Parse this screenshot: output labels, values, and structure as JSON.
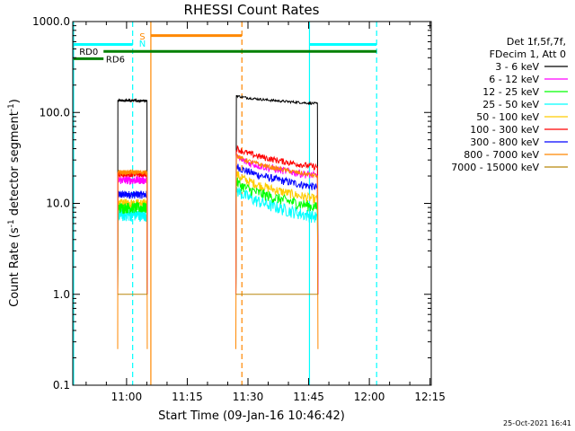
{
  "chart_data": {
    "type": "line",
    "title": "RHESSI Count Rates",
    "xlabel": "Start Time (09-Jan-16 10:46:42)",
    "ylabel_main": "Count Rate (s",
    "ylabel_sup": "-1",
    "ylabel_tail": " detector segment",
    "ylabel_sup2": "-1",
    "ylabel_close": ")",
    "y_scale": "log",
    "ylim": [
      0.1,
      1000
    ],
    "xlim_minutes": [
      46.7,
      135.3
    ],
    "x_ticks": [
      {
        "label": "11:00",
        "minutes": 60
      },
      {
        "label": "11:15",
        "minutes": 75
      },
      {
        "label": "11:30",
        "minutes": 90
      },
      {
        "label": "11:45",
        "minutes": 105
      },
      {
        "label": "12:00",
        "minutes": 120
      },
      {
        "label": "12:15",
        "minutes": 135
      }
    ],
    "y_ticks": [
      {
        "label": "1000.0",
        "value": 1000
      },
      {
        "label": "100.0",
        "value": 100
      },
      {
        "label": "10.0",
        "value": 10
      },
      {
        "label": "1.0",
        "value": 1
      },
      {
        "label": "0.1",
        "value": 0.1
      }
    ],
    "legend": {
      "header": [
        "Det 1f,5f,7f,",
        "FDecim 1, Att 0"
      ],
      "placement": "right"
    },
    "series": [
      {
        "name": "3 - 6 keV",
        "color": "#000000",
        "level1": 135,
        "level2_start": 155,
        "level2_end": 125,
        "noise": 0.03
      },
      {
        "name": "6 - 12 keV",
        "color": "#ff00ff",
        "level1": 18,
        "level2_start": 33,
        "level2_end": 20,
        "noise": 0.1
      },
      {
        "name": "12 - 25 keV",
        "color": "#00ff00",
        "level1": 9,
        "level2_start": 18,
        "level2_end": 9,
        "noise": 0.14
      },
      {
        "name": "25 - 50 keV",
        "color": "#00ffff",
        "level1": 7.5,
        "level2_start": 15,
        "level2_end": 7,
        "noise": 0.16
      },
      {
        "name": "50 - 100 keV",
        "color": "#ffcc00",
        "level1": 10,
        "level2_start": 22,
        "level2_end": 11,
        "noise": 0.12
      },
      {
        "name": "100 - 300 keV",
        "color": "#ff0000",
        "level1": 21,
        "level2_start": 42,
        "level2_end": 25,
        "noise": 0.08
      },
      {
        "name": "300 - 800 keV",
        "color": "#0000ff",
        "level1": 12.5,
        "level2_start": 27,
        "level2_end": 15,
        "noise": 0.1
      },
      {
        "name": "800 - 7000 keV",
        "color": "#ff8800",
        "level1": 22,
        "level2_start": 35,
        "level2_end": 20,
        "noise": 0.06
      },
      {
        "name": "7000 - 15000 keV",
        "color": "#b8860b",
        "level1": 1,
        "level2_start": 1,
        "level2_end": 1,
        "noise": 0.05
      }
    ],
    "segments_minutes": [
      [
        57.8,
        65.1
      ],
      [
        87.0,
        107.3
      ]
    ],
    "annotations": {
      "s_label": "S",
      "n_label": "N",
      "rd0_label": "RD0",
      "rd6_label": "RD6",
      "vlines_minutes": [
        {
          "minutes": 46.9,
          "color": "#00ffff",
          "dash": false
        },
        {
          "minutes": 61.5,
          "color": "#00ffff",
          "dash": true
        },
        {
          "minutes": 66.0,
          "color": "#ff8800",
          "dash": false
        },
        {
          "minutes": 88.5,
          "color": "#ff8800",
          "dash": true
        },
        {
          "minutes": 105.2,
          "color": "#00ffff",
          "dash": false
        },
        {
          "minutes": 121.8,
          "color": "#00ffff",
          "dash": true
        }
      ],
      "hbars": [
        {
          "from": 46.9,
          "to": 61.5,
          "value": 560,
          "color": "#00ffff"
        },
        {
          "from": 105.2,
          "to": 121.8,
          "value": 560,
          "color": "#00ffff"
        },
        {
          "from": 66.0,
          "to": 88.5,
          "value": 700,
          "color": "#ff8800"
        },
        {
          "from": 46.9,
          "to": 54.3,
          "value": 390,
          "color": "#008000"
        },
        {
          "from": 54.3,
          "to": 121.8,
          "value": 470,
          "color": "#008000"
        }
      ]
    }
  },
  "footer": {
    "timestamp": "25-Oct-2021 16:41"
  }
}
